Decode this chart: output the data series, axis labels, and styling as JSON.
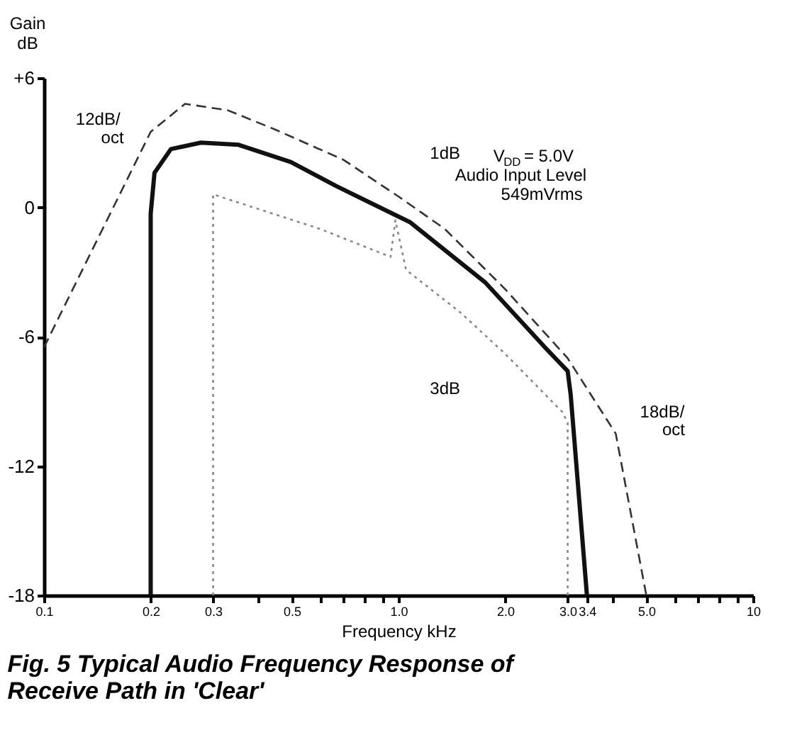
{
  "chart_data": {
    "type": "line",
    "title": "Fig. 5  Typical Audio Frequency Response of Receive Path in 'Clear'",
    "xlabel": "Frequency kHz",
    "ylabel": "Gain dB",
    "xlim": [
      0.1,
      10
    ],
    "ylim": [
      -18,
      6
    ],
    "log": "x",
    "grid": false,
    "marker": "none",
    "xticks": [
      0.1,
      0.2,
      0.3,
      {
        "value": 0.4,
        "label": null
      },
      0.5,
      {
        "value": 0.6,
        "label": null
      },
      {
        "value": 0.7,
        "label": null
      },
      {
        "value": 0.8,
        "label": null
      },
      {
        "value": 0.9,
        "label": null
      },
      {
        "value": 1,
        "label": "1.0"
      },
      {
        "value": 2,
        "label": "2.0"
      },
      {
        "value": 3,
        "label": "3.0"
      },
      3.4,
      {
        "value": 4,
        "label": null
      },
      {
        "value": 5,
        "label": "5.0"
      },
      {
        "value": 6,
        "label": null
      },
      {
        "value": 7,
        "label": null
      },
      {
        "value": 8,
        "label": null
      },
      {
        "value": 9,
        "label": null
      },
      10
    ],
    "yticks": [
      {
        "value": 6,
        "label": "+6"
      },
      0,
      -6,
      -12,
      -18
    ],
    "series": [
      {
        "color": "#111111",
        "line_style": "solid",
        "x": [
          0.2,
          0.2,
          0.205,
          0.228,
          0.277,
          0.354,
          0.497,
          0.665,
          1.08,
          1.76,
          2.59,
          3.0,
          3.06,
          3.4
        ],
        "values": [
          -18,
          -0.3,
          1.6,
          2.7,
          3.0,
          2.9,
          2.1,
          1.0,
          -0.7,
          -3.5,
          -6.5,
          -7.6,
          -8.7,
          -18
        ]
      },
      {
        "color": "#333333",
        "line_style": "dashed",
        "x": [
          0.1,
          0.2,
          0.25,
          0.33,
          0.45,
          0.7,
          1.0,
          1.35,
          2.0,
          3.0,
          4.1,
          5.0
        ],
        "values": [
          -6.5,
          3.5,
          4.8,
          4.5,
          3.6,
          2.2,
          0.5,
          -1.0,
          -3.8,
          -7.0,
          -10.5,
          -18
        ]
      },
      {
        "color": "#888888",
        "line_style": "dotted",
        "x": [
          0.3,
          0.3,
          0.6,
          0.95,
          0.98,
          1.05,
          1.5,
          2.0,
          2.9,
          3.0,
          3.0
        ],
        "values": [
          -18,
          0.6,
          -1.0,
          -2.3,
          -0.6,
          -2.9,
          -4.9,
          -6.8,
          -9.5,
          -10,
          -18
        ]
      }
    ],
    "annotations": [
      "12dB/",
      "oct",
      "1dB",
      "3dB",
      "18dB/",
      "oct",
      "V$_{DD}$ = 5.0V",
      "Audio Input Level",
      "549mVrms"
    ]
  }
}
